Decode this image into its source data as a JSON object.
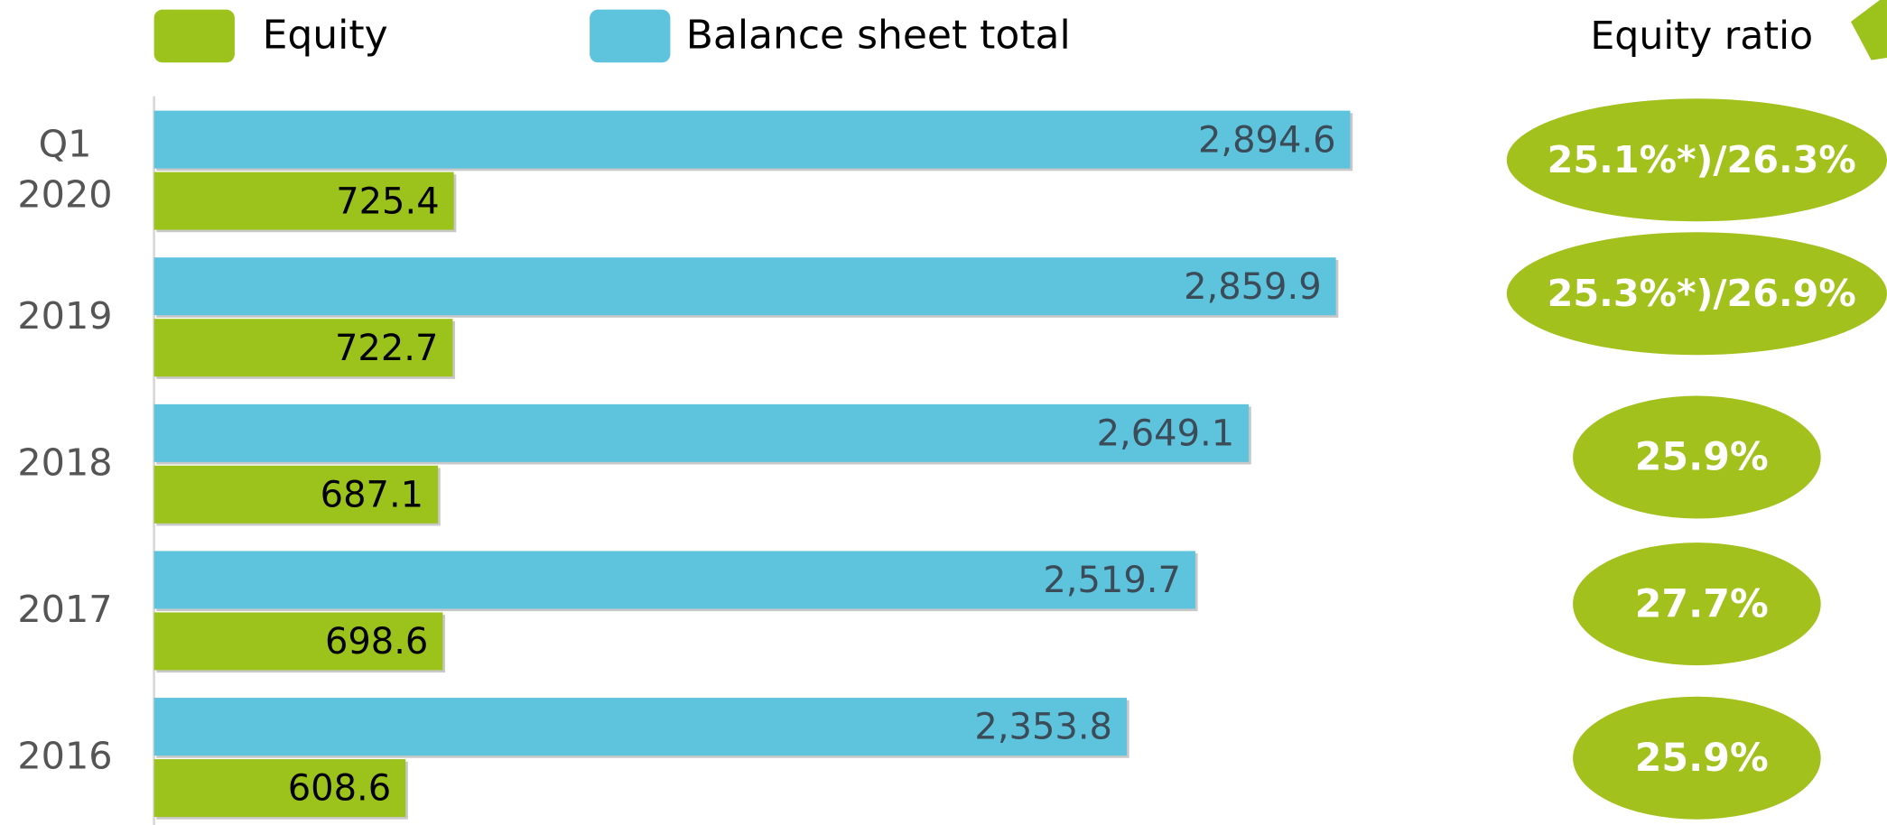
{
  "chart_data": {
    "type": "bar",
    "categories": [
      "Q1 2020",
      "2019",
      "2018",
      "2017",
      "2016"
    ],
    "series": [
      {
        "name": "Equity",
        "color": "#9cc31c",
        "values": [
          725.4,
          722.7,
          687.1,
          698.6,
          608.6
        ]
      },
      {
        "name": "Balance sheet total",
        "color": "#5ec3dd",
        "values": [
          2894.6,
          2859.9,
          2649.1,
          2519.7,
          2353.8
        ],
        "value_labels": [
          "2,894.6",
          "2,859.9",
          "2,649.1",
          "2,519.7",
          "2,353.8"
        ]
      }
    ],
    "equity_ratio": {
      "title": "Equity ratio",
      "labels": [
        "25.1%*)/26.3%",
        "25.3%*)/26.9%",
        "25.9%",
        "27.7%",
        "25.9%"
      ]
    }
  }
}
